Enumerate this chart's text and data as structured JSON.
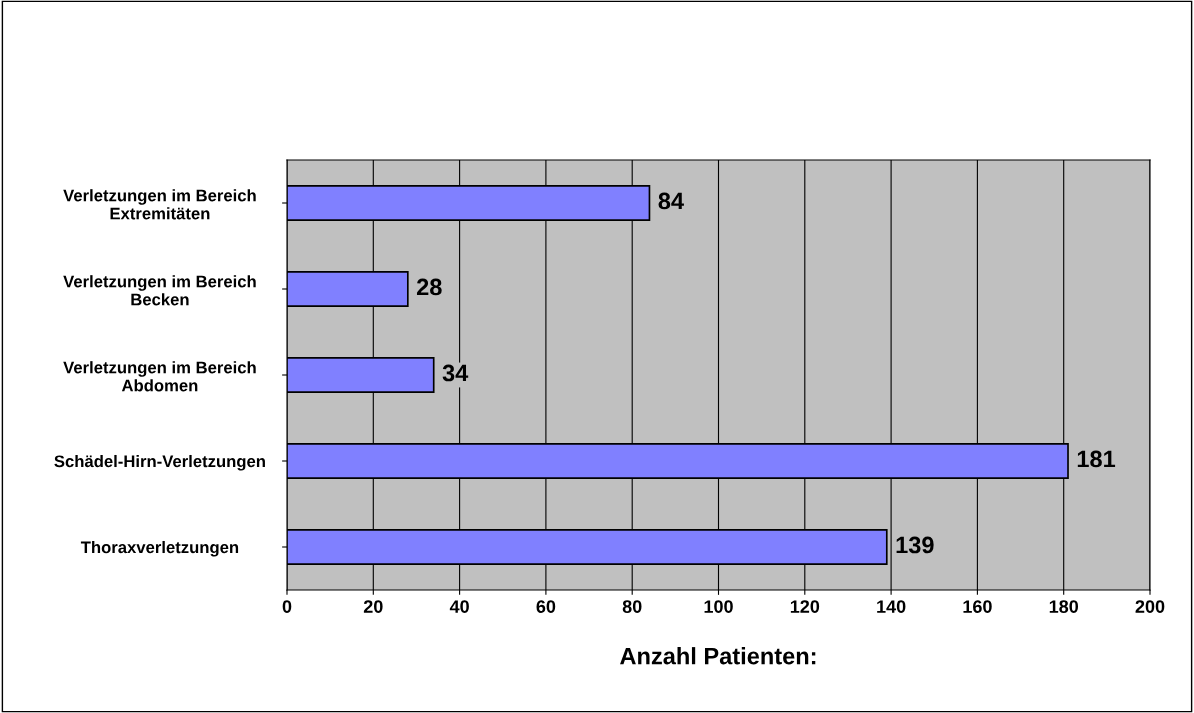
{
  "chart_data": {
    "type": "bar",
    "orientation": "horizontal",
    "categories": [
      "Verletzungen im Bereich\nExtremitäten",
      "Verletzungen im Bereich\nBecken",
      "Verletzungen im Bereich\nAbdomen",
      "Schädel-Hirn-Verletzungen",
      "Thoraxverletzungen"
    ],
    "values": [
      84,
      28,
      34,
      181,
      139
    ],
    "color": "#8080ff",
    "data_labels": true,
    "xlim": [
      0,
      200
    ],
    "xticks": [
      0,
      20,
      40,
      60,
      80,
      100,
      120,
      140,
      160,
      180,
      200
    ],
    "grid": "x",
    "xlabel": "Anzahl Patienten:"
  }
}
